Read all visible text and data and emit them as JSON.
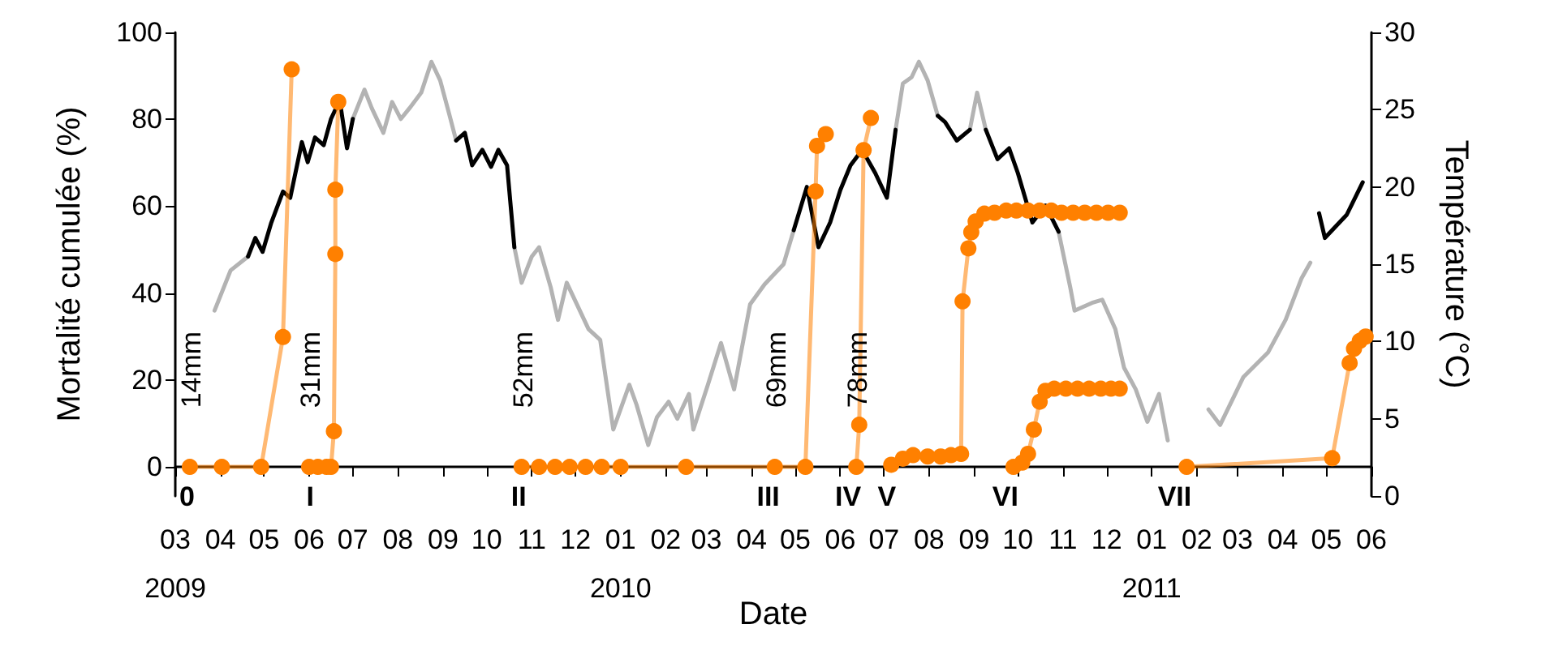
{
  "chart_data": {
    "type": "line",
    "xlabel": "Date",
    "ylabel": "Mortalité cumulée (%)",
    "y2label": "Température (°C)",
    "xlim": [
      "2009-03-01",
      "2011-06-01"
    ],
    "xticks": [
      {
        "value": "2009-03-01",
        "label": "03\n2009"
      },
      {
        "value": "2009-04-01",
        "label": "04"
      },
      {
        "value": "2009-05-01",
        "label": "05"
      },
      {
        "value": "2009-06-01",
        "label": "06"
      },
      {
        "value": "2009-07-01",
        "label": "07"
      },
      {
        "value": "2009-08-01",
        "label": "08"
      },
      {
        "value": "2009-09-01",
        "label": "09"
      },
      {
        "value": "2009-10-01",
        "label": "10"
      },
      {
        "value": "2009-11-01",
        "label": "11"
      },
      {
        "value": "2009-12-01",
        "label": "12"
      },
      {
        "value": "2010-01-01",
        "label": "01\n2010"
      },
      {
        "value": "2010-02-01",
        "label": "02"
      },
      {
        "value": "2010-03-01",
        "label": "03"
      },
      {
        "value": "2010-04-01",
        "label": "04"
      },
      {
        "value": "2010-05-01",
        "label": "05"
      },
      {
        "value": "2010-06-01",
        "label": "06"
      },
      {
        "value": "2010-07-01",
        "label": "07"
      },
      {
        "value": "2010-08-01",
        "label": "08"
      },
      {
        "value": "2010-09-01",
        "label": "09"
      },
      {
        "value": "2010-10-01",
        "label": "10"
      },
      {
        "value": "2010-11-01",
        "label": "11"
      },
      {
        "value": "2010-12-01",
        "label": "12"
      },
      {
        "value": "2011-01-01",
        "label": "01\n2011"
      },
      {
        "value": "2011-02-01",
        "label": "02"
      },
      {
        "value": "2011-03-01",
        "label": "03"
      },
      {
        "value": "2011-04-01",
        "label": "04"
      },
      {
        "value": "2011-05-01",
        "label": "05"
      },
      {
        "value": "2011-06-01",
        "label": "06"
      }
    ],
    "ylim": [
      -6.7,
      100
    ],
    "yticks": [
      0,
      20,
      40,
      60,
      80,
      100
    ],
    "y2lim": [
      0,
      30
    ],
    "y2ticks": [
      0,
      5,
      10,
      15,
      20,
      25,
      30
    ],
    "grid": false,
    "marker": "circle",
    "line_style": "solid",
    "series": [
      {
        "color": "#b3b3b3",
        "axis": "y2",
        "marker": "none",
        "x": [
          "2009-03-28",
          "2009-04-08",
          "2009-04-20",
          "2009-05-20",
          "2009-07-01",
          "2009-07-09",
          "2009-07-14",
          "2009-07-22",
          "2009-07-28",
          "2009-08-03",
          "2009-08-09",
          "2009-08-17",
          "2009-08-24",
          "2009-08-30",
          "2009-09-05",
          "2009-09-10",
          "2009-09-25",
          "2009-10-20",
          "2009-10-25",
          "2009-11-01",
          "2009-11-06",
          "2009-11-14",
          "2009-11-19",
          "2009-11-25",
          "2009-12-10",
          "2009-12-18",
          "2009-12-27",
          "2010-01-07",
          "2010-01-12",
          "2010-01-20",
          "2010-01-26",
          "2010-02-03",
          "2010-02-09",
          "2010-02-17",
          "2010-02-20",
          "2010-03-02",
          "2010-03-11",
          "2010-03-20",
          "2010-03-31",
          "2010-04-10",
          "2010-04-23",
          "2010-04-30",
          "2010-05-20",
          "2010-07-09",
          "2010-07-14",
          "2010-07-20",
          "2010-07-25",
          "2010-07-31",
          "2010-08-07",
          "2010-08-15",
          "2010-08-29",
          "2010-09-03",
          "2010-09-09",
          "2010-10-01",
          "2010-10-29",
          "2010-11-06",
          "2010-11-09",
          "2010-11-21",
          "2010-11-28",
          "2010-12-07",
          "2010-12-13",
          "2010-12-21",
          "2010-12-29",
          "2011-01-06",
          "2011-01-12",
          "2011-01-25",
          "2011-02-09",
          "2011-02-17",
          "2011-03-05",
          "2011-03-22",
          "2011-04-03",
          "2011-04-14",
          "2011-04-20"
        ],
        "values": [
          12.0,
          14.6,
          15.5,
          null,
          24.4,
          26.3,
          25.1,
          23.5,
          25.5,
          24.4,
          25.1,
          26.1,
          28.1,
          26.9,
          24.8,
          23.0,
          null,
          16.1,
          13.8,
          15.5,
          16.1,
          13.5,
          11.4,
          13.8,
          10.8,
          10.1,
          4.3,
          7.2,
          5.9,
          3.3,
          5.1,
          6.1,
          5.0,
          6.6,
          4.3,
          7.2,
          9.9,
          6.9,
          12.4,
          13.7,
          15.0,
          17.2,
          null,
          23.7,
          26.7,
          27.1,
          28.1,
          26.9,
          24.6,
          null,
          23.7,
          26.1,
          23.7,
          null,
          17.1,
          13.5,
          12.0,
          12.5,
          12.7,
          10.8,
          8.3,
          6.9,
          4.8,
          6.6,
          3.6,
          null,
          5.6,
          4.6,
          7.7,
          9.3,
          11.4,
          14.1,
          15.1
        ]
      },
      {
        "color": "#000000",
        "axis": "y2",
        "marker": "none",
        "x": [
          "2009-04-20",
          "2009-04-25",
          "2009-04-30",
          "2009-05-06",
          "2009-05-14",
          "2009-05-19",
          "2009-05-27",
          "2009-05-31",
          "2009-06-05",
          "2009-06-11",
          "2009-06-16",
          "2009-06-22",
          "2009-06-27",
          "2009-07-01",
          "2009-08-01",
          "2009-09-10",
          "2009-09-16",
          "2009-09-21",
          "2009-09-28",
          "2009-10-04",
          "2009-10-09",
          "2009-10-15",
          "2009-10-20",
          "2010-01-01",
          "2010-04-30",
          "2010-05-09",
          "2010-05-17",
          "2010-05-25",
          "2010-06-01",
          "2010-06-08",
          "2010-06-16",
          "2010-06-25",
          "2010-07-03",
          "2010-07-09",
          "2010-07-20",
          "2010-08-07",
          "2010-08-12",
          "2010-08-20",
          "2010-08-29",
          "2010-09-03",
          "2010-09-09",
          "2010-09-17",
          "2010-09-25",
          "2010-10-01",
          "2010-10-11",
          "2010-10-20",
          "2010-10-29",
          "2011-01-01",
          "2011-04-26",
          "2011-04-30",
          "2011-05-15",
          "2011-05-26"
        ],
        "values": [
          15.5,
          16.7,
          15.8,
          17.7,
          19.7,
          19.3,
          22.9,
          21.6,
          23.2,
          22.7,
          24.4,
          25.6,
          22.5,
          24.4,
          null,
          23.0,
          23.5,
          21.4,
          22.4,
          21.3,
          22.4,
          21.4,
          16.1,
          null,
          17.2,
          20.0,
          16.1,
          17.7,
          19.8,
          21.4,
          22.4,
          20.9,
          19.3,
          23.7,
          null,
          24.6,
          24.2,
          23.0,
          23.7,
          null,
          23.7,
          21.8,
          22.5,
          20.9,
          17.7,
          18.8,
          17.1,
          null,
          18.3,
          16.7,
          18.2,
          20.3
        ]
      },
      {
        "color": "#ff8000",
        "x": [
          "2009-03-11",
          "2009-04-02",
          "2009-04-29",
          "2009-05-14",
          "2009-05-20"
        ],
        "values": [
          0,
          0,
          0,
          29.9,
          91.5
        ]
      },
      {
        "color": "#ff8000",
        "x": [
          "2009-06-01",
          "2009-06-07",
          "2009-06-13",
          "2009-06-16",
          "2009-06-18",
          "2009-06-19",
          "2009-06-19",
          "2009-06-21"
        ],
        "values": [
          0,
          0,
          0,
          0,
          8.2,
          49.0,
          63.8,
          84.0
        ]
      },
      {
        "color": "#ff8000",
        "x": [
          "2009-10-25",
          "2009-11-06",
          "2009-11-17",
          "2009-11-27",
          "2009-12-08",
          "2009-12-19",
          "2010-01-01",
          "2010-02-15",
          "2010-04-17",
          "2010-05-08",
          "2010-05-15",
          "2010-05-16",
          "2010-05-22"
        ],
        "values": [
          0,
          0,
          0,
          0,
          0,
          0,
          0,
          0,
          0,
          0,
          63.4,
          73.9,
          76.6
        ]
      },
      {
        "color": "#ff8000",
        "x": [
          "2010-06-12",
          "2010-06-14",
          "2010-06-17",
          "2010-06-22"
        ],
        "values": [
          0,
          9.7,
          72.9,
          80.3
        ]
      },
      {
        "color": "#ff8000",
        "x": [
          "2010-07-06",
          "2010-07-14",
          "2010-07-21",
          "2010-07-31",
          "2010-08-09",
          "2010-08-16",
          "2010-08-23",
          "2010-08-24",
          "2010-08-28",
          "2010-08-30",
          "2010-09-02",
          "2010-09-08",
          "2010-09-15",
          "2010-09-23",
          "2010-09-30",
          "2010-10-08",
          "2010-10-16",
          "2010-10-24",
          "2010-10-31",
          "2010-11-08",
          "2010-11-16",
          "2010-11-24",
          "2010-12-02",
          "2010-12-10"
        ],
        "values": [
          0.5,
          1.9,
          2.7,
          2.4,
          2.4,
          2.7,
          3.0,
          38.1,
          50.3,
          54.0,
          56.5,
          58.3,
          58.5,
          59.0,
          59.0,
          59.0,
          59.0,
          59.0,
          58.5,
          58.5,
          58.5,
          58.5,
          58.5,
          58.5
        ]
      },
      {
        "color": "#ff8000",
        "x": [
          "2010-09-28",
          "2010-10-04",
          "2010-10-08",
          "2010-10-12",
          "2010-10-16",
          "2010-10-20",
          "2010-10-26",
          "2010-11-03",
          "2010-11-11",
          "2010-11-19",
          "2010-11-27",
          "2010-12-04",
          "2010-12-10"
        ],
        "values": [
          0,
          1.0,
          3.0,
          8.6,
          15.0,
          17.5,
          18.0,
          18.0,
          18.0,
          18.0,
          18.0,
          18.0,
          18.0
        ]
      },
      {
        "color": "#ff8000",
        "x": [
          "2011-01-25",
          "2011-05-05",
          "2011-05-17",
          "2011-05-20",
          "2011-05-24",
          "2011-05-28"
        ],
        "values": [
          0,
          2.0,
          23.9,
          27.2,
          29.0,
          30.0
        ]
      }
    ],
    "annotations": [
      {
        "text": "0",
        "x": "2009-03-11",
        "y": 0
      },
      {
        "text": "I",
        "x": "2009-06-01",
        "y": 0
      },
      {
        "text": "II",
        "x": "2009-10-25",
        "y": 0
      },
      {
        "text": "III",
        "x": "2010-04-17",
        "y": 0
      },
      {
        "text": "IV",
        "x": "2010-06-12",
        "y": 0
      },
      {
        "text": "V",
        "x": "2010-07-06",
        "y": 0
      },
      {
        "text": "VI",
        "x": "2010-09-28",
        "y": 0
      },
      {
        "text": "VII",
        "x": "2011-01-25",
        "y": 0
      },
      {
        "text": "14mm",
        "x": "2009-03-11",
        "y": 0
      },
      {
        "text": "31mm",
        "x": "2009-06-01",
        "y": 0
      },
      {
        "text": "52mm",
        "x": "2009-10-25",
        "y": 0
      },
      {
        "text": "69mm",
        "x": "2010-04-17",
        "y": 0
      },
      {
        "text": "78mm",
        "x": "2010-06-12",
        "y": 0
      }
    ]
  }
}
